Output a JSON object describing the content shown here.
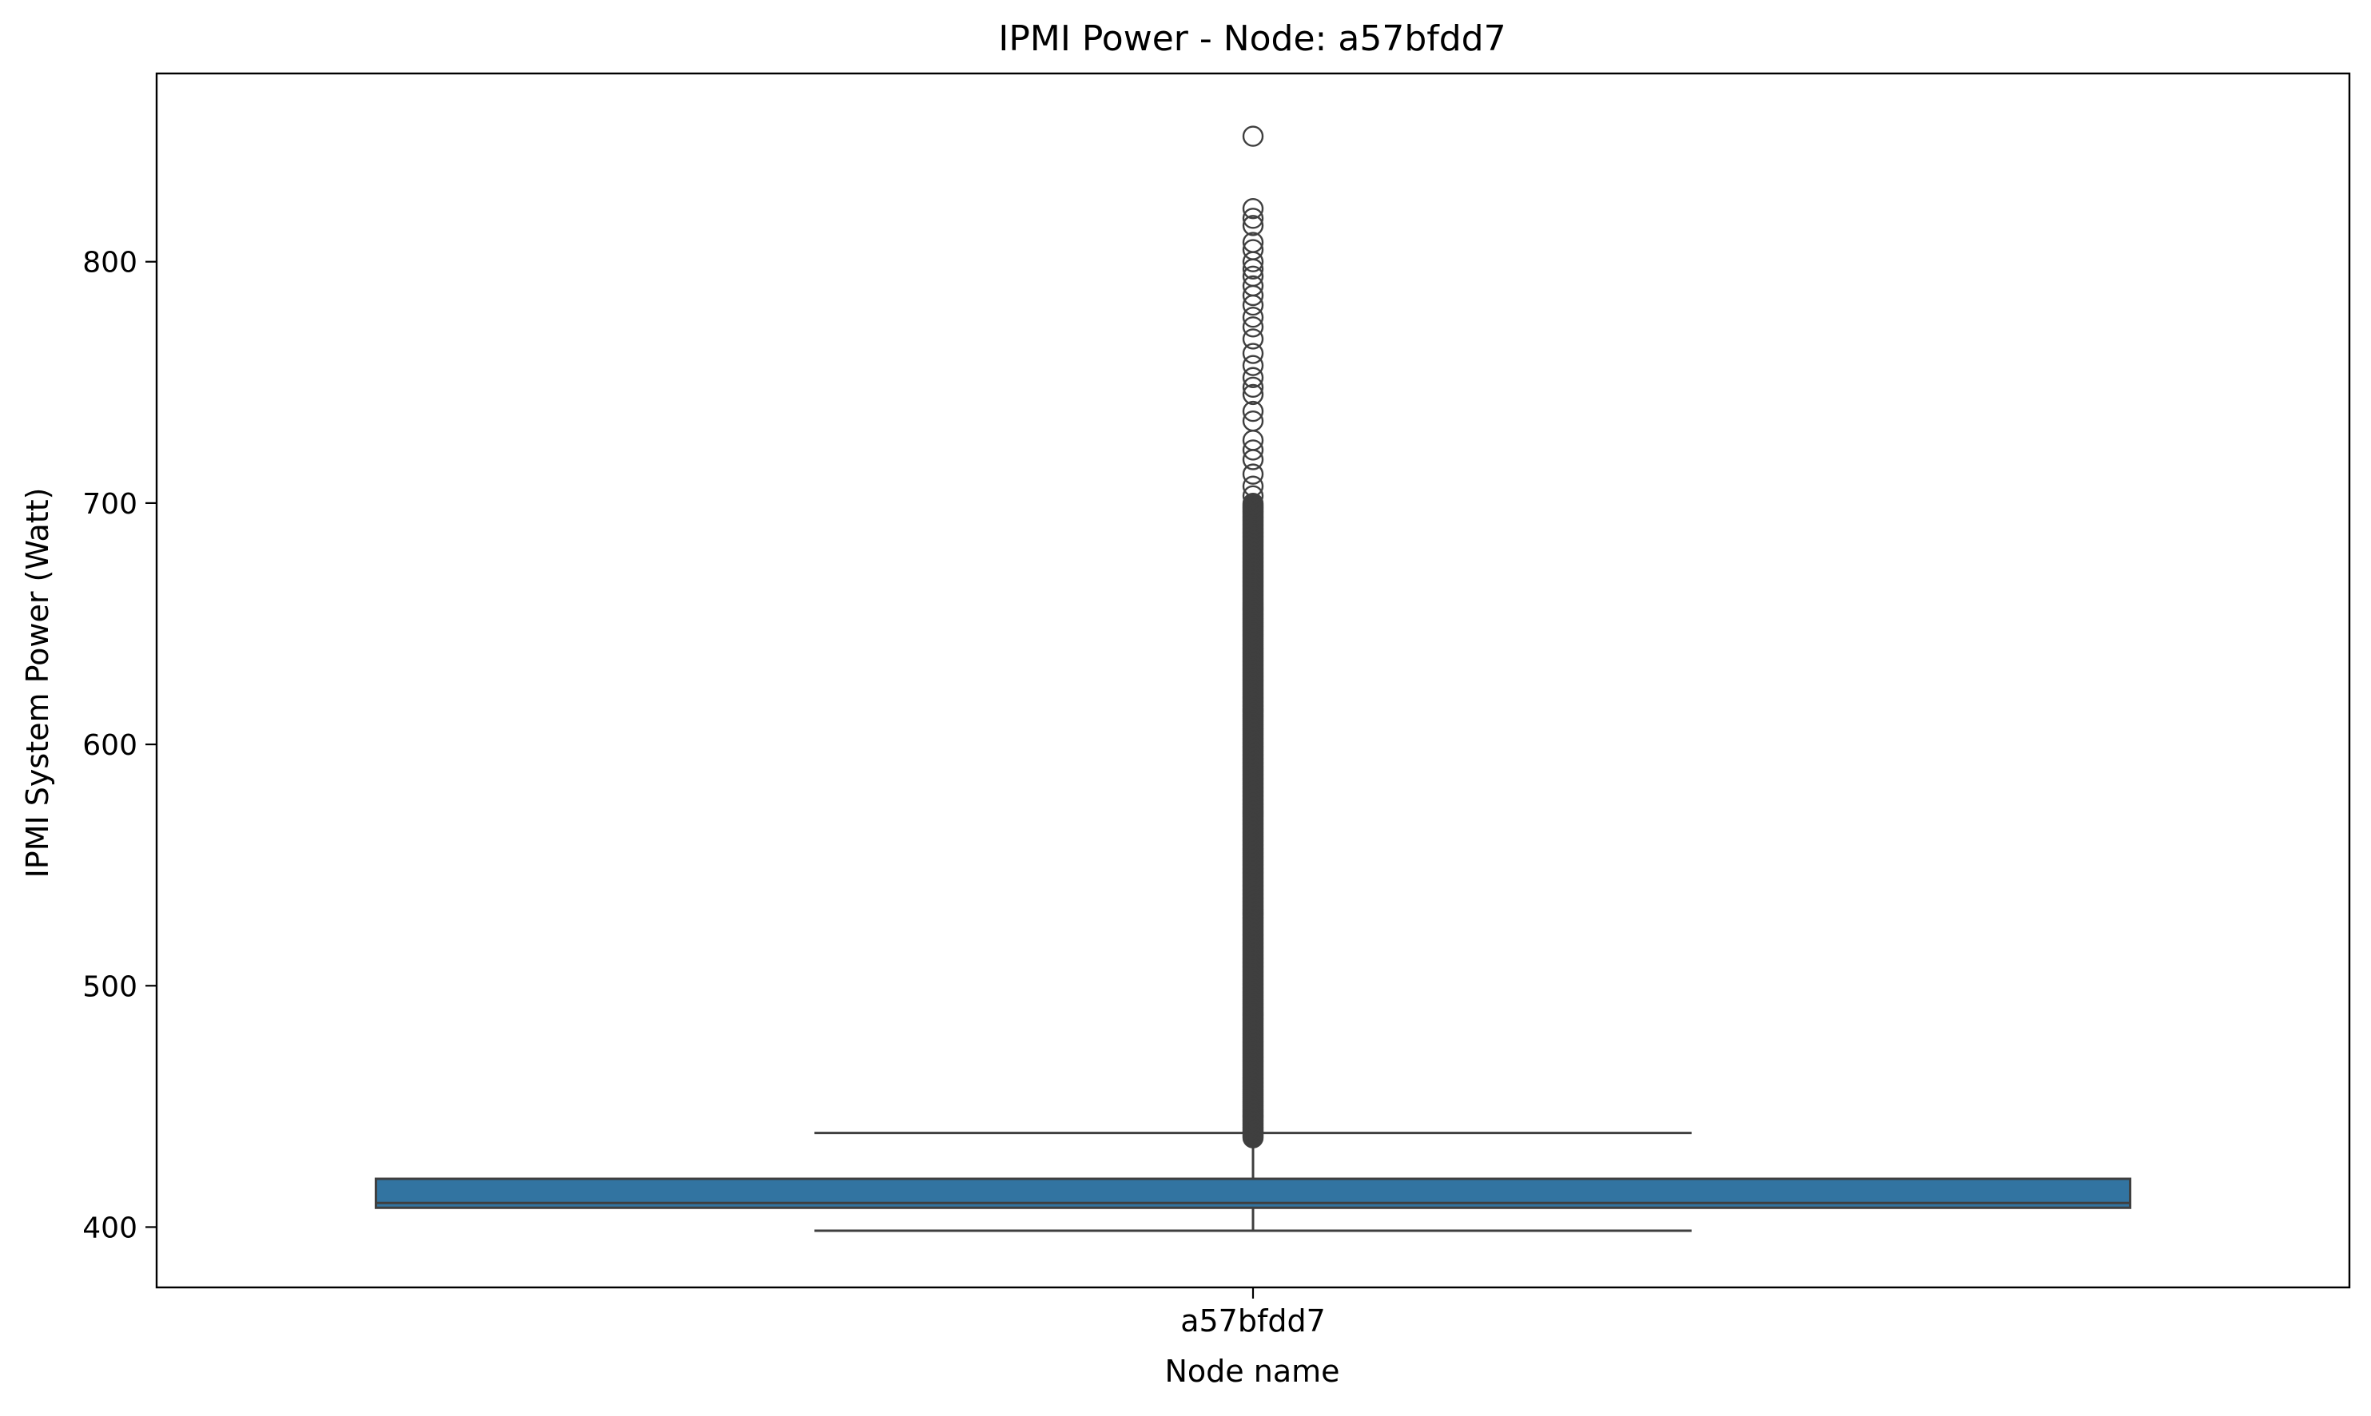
{
  "chart_data": {
    "type": "box",
    "title": "IPMI Power - Node: a57bfdd7",
    "xlabel": "Node name",
    "ylabel": "IPMI System Power (Watt)",
    "categories": [
      "a57bfdd7"
    ],
    "ylim": [
      375,
      878
    ],
    "yticks": [
      400,
      500,
      600,
      700,
      800
    ],
    "grid": false,
    "box_color": "#3274a1",
    "line_color": "#3f3f3f",
    "boxes": [
      {
        "category": "a57bfdd7",
        "whisker_low": 398.5,
        "q1": 408,
        "median": 410,
        "q3": 420,
        "whisker_high": 439,
        "outlier_range": [
          437,
          700
        ],
        "outliers_sparse": [
          852,
          822,
          818,
          815,
          808,
          805,
          800,
          797,
          794,
          790,
          786,
          782,
          777,
          773,
          768,
          762,
          757,
          752,
          748,
          745,
          738,
          734,
          726,
          722,
          718,
          712,
          707,
          703
        ]
      }
    ]
  }
}
